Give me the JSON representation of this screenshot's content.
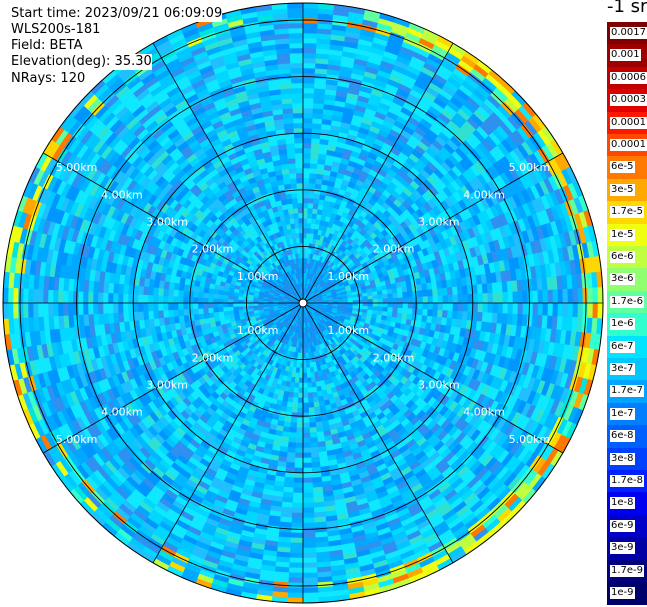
{
  "info": {
    "start_time": "Start time: 2023/09/21 06:09:09",
    "instrument": "WLS200s-181",
    "field": "Field: BETA",
    "elevation": "Elevation(deg): 35.30",
    "nrays": "NRays: 120"
  },
  "colorbar": {
    "unit": "-1 sr",
    "labels": [
      "0.0017",
      "0.001",
      "0.0006",
      "0.0003",
      "0.00017",
      "0.0001",
      "6e-5",
      "3e-5",
      "1.7e-5",
      "1e-5",
      "6e-6",
      "3e-6",
      "1.7e-6",
      "1e-6",
      "6e-7",
      "3e-7",
      "1.7e-7",
      "1e-7",
      "6e-8",
      "3e-8",
      "1.7e-8",
      "1e-8",
      "6e-9",
      "3e-9",
      "1.7e-9",
      "1e-9"
    ],
    "colors": [
      "#7f0000",
      "#9e0000",
      "#c00000",
      "#e00000",
      "#ff1800",
      "#ff4800",
      "#ff7800",
      "#ffa800",
      "#ffd800",
      "#f0ff10",
      "#c0ff40",
      "#90ff70",
      "#60ffa0",
      "#30ffd0",
      "#00e4ff",
      "#00c8ff",
      "#00a4ff",
      "#0080ff",
      "#0060ff",
      "#0040ff",
      "#0020ff",
      "#0000f0",
      "#0000c8",
      "#0000a4",
      "#000080",
      "#00006a"
    ]
  },
  "chart_data": {
    "type": "heatmap",
    "projection": "polar",
    "rays": 120,
    "range_rings_km": [
      1,
      2,
      3,
      4,
      5
    ],
    "ring_labels": [
      "1.00km",
      "2.00km",
      "3.00km",
      "4.00km",
      "5.00km"
    ],
    "max_range_km": 5.3,
    "spoke_count": 12,
    "background_level": "1e-7",
    "features": [
      {
        "description": "elevated backscatter band near outer edge",
        "range_km": [
          4.9,
          5.3
        ],
        "levels": [
          "1.7e-6",
          "1e-5",
          "3e-5"
        ]
      }
    ]
  }
}
